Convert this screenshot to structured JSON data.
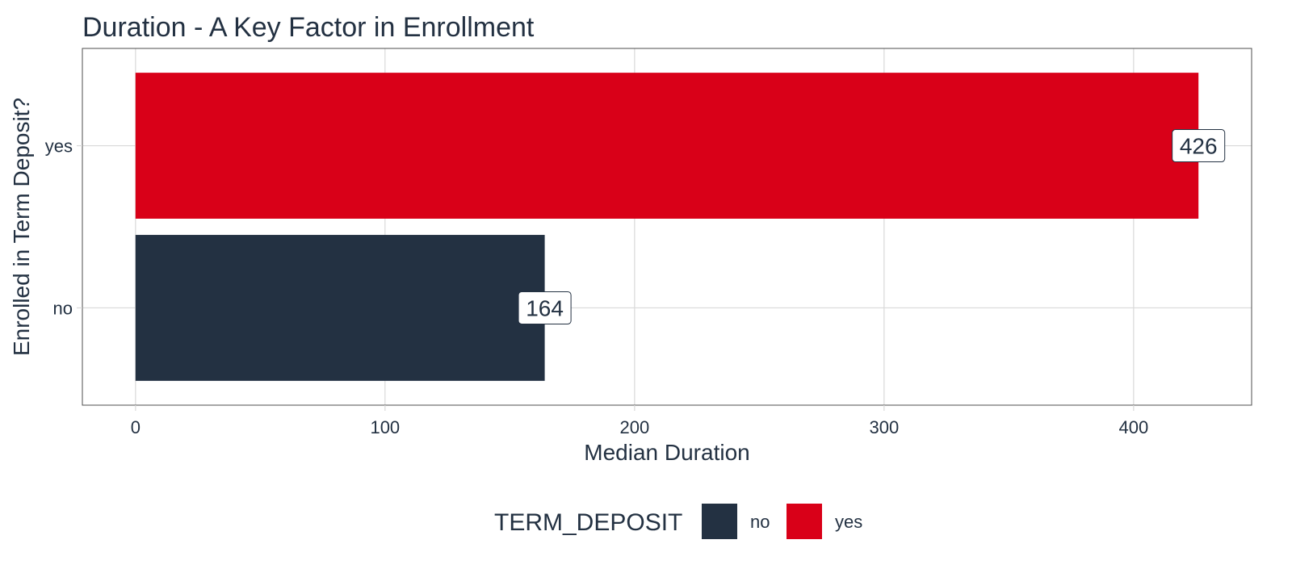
{
  "chart_data": {
    "type": "bar",
    "orientation": "horizontal",
    "title": "Duration - A Key Factor in Enrollment",
    "xlabel": "Median Duration",
    "ylabel": "Enrolled in Term Deposit?",
    "categories": [
      "no",
      "yes"
    ],
    "values": [
      164,
      426
    ],
    "data_labels": [
      "164",
      "426"
    ],
    "xlim": [
      -21.3,
      447.3
    ],
    "x_ticks": [
      0,
      100,
      200,
      300,
      400
    ],
    "x_tick_labels": [
      "0",
      "100",
      "200",
      "300",
      "400"
    ],
    "grid": true,
    "legend": {
      "title": "TERM_DEPOSIT",
      "position": "bottom",
      "entries": [
        {
          "label": "no",
          "color": "#233142"
        },
        {
          "label": "yes",
          "color": "#d90018"
        }
      ]
    },
    "colors": {
      "no": "#233142",
      "yes": "#d90018",
      "text": "#233142",
      "grid": "#d9d9d9",
      "panel_border": "#4d4d4d"
    }
  }
}
